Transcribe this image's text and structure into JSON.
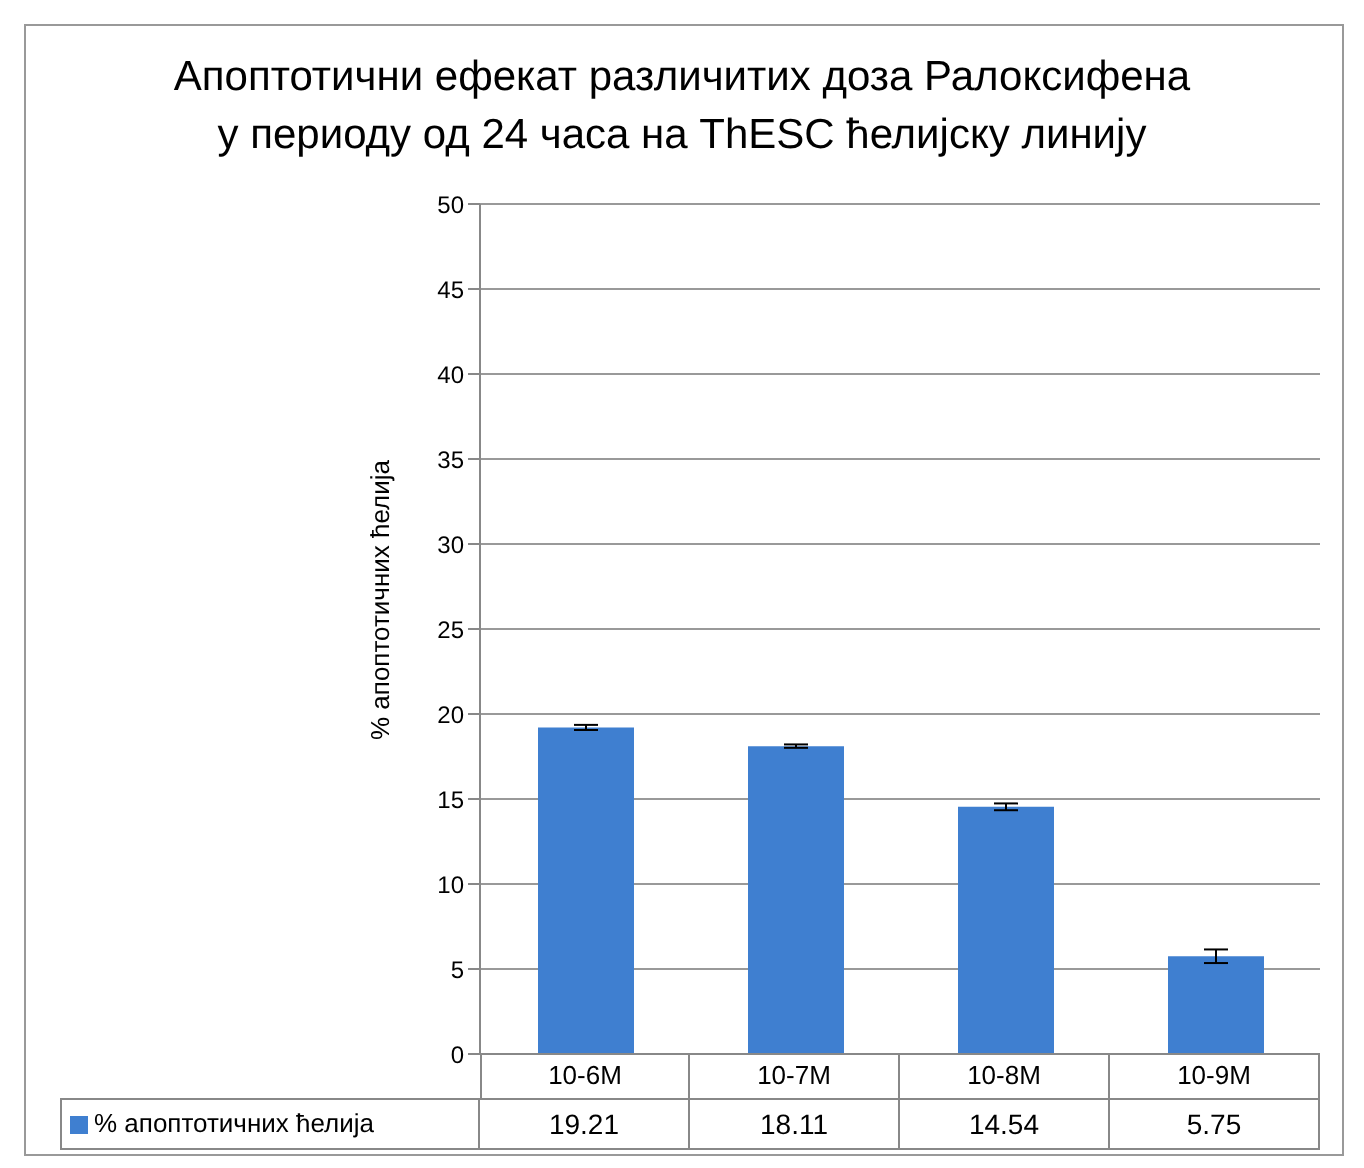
{
  "chart_data": {
    "type": "bar",
    "title": "Апоптотични ефекат различитих доза Ралоксифена\nу периоду од 24 часа на ThESC ћелијску линију",
    "ylabel": "% апоптотичних ћелија",
    "categories": [
      "10-6M",
      "10-7M",
      "10-8M",
      "10-9M"
    ],
    "series": [
      {
        "name": "% апоптотичних ћелија",
        "color": "#3f7fd0",
        "values": [
          19.21,
          18.11,
          14.54,
          5.75
        ],
        "errors": [
          0.15,
          0.1,
          0.2,
          0.4
        ]
      }
    ],
    "ylim": [
      0,
      50
    ],
    "yticks": [
      0,
      5,
      10,
      15,
      20,
      25,
      30,
      35,
      40,
      45,
      50
    ],
    "grid": "y",
    "data_labels": true
  }
}
